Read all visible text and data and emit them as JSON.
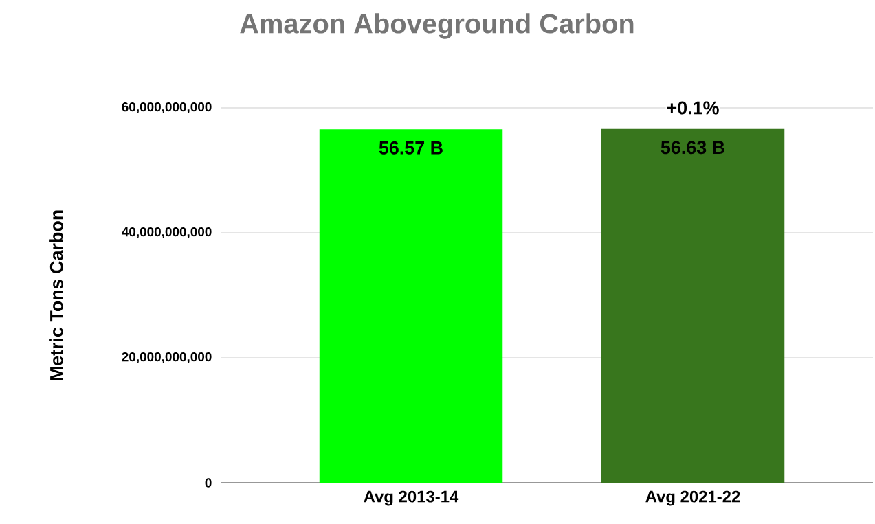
{
  "chart_data": {
    "type": "bar",
    "title": "Amazon Aboveground Carbon",
    "ylabel": "Metric Tons Carbon",
    "categories": [
      "Avg 2013-14",
      "Avg 2021-22"
    ],
    "values": [
      56570000000,
      56630000000
    ],
    "colors": [
      "#00ff00",
      "#38761d"
    ],
    "value_labels": [
      "56.57 B",
      "56.63 B"
    ],
    "annotations": [
      "+0.1%"
    ],
    "ylim": [
      0,
      60000000000
    ],
    "yticks": [
      {
        "value": 0,
        "label": "0"
      },
      {
        "value": 20000000000,
        "label": "20,000,000,000"
      },
      {
        "value": 40000000000,
        "label": "40,000,000,000"
      },
      {
        "value": 60000000000,
        "label": "60,000,000,000"
      }
    ],
    "grid": "y"
  }
}
